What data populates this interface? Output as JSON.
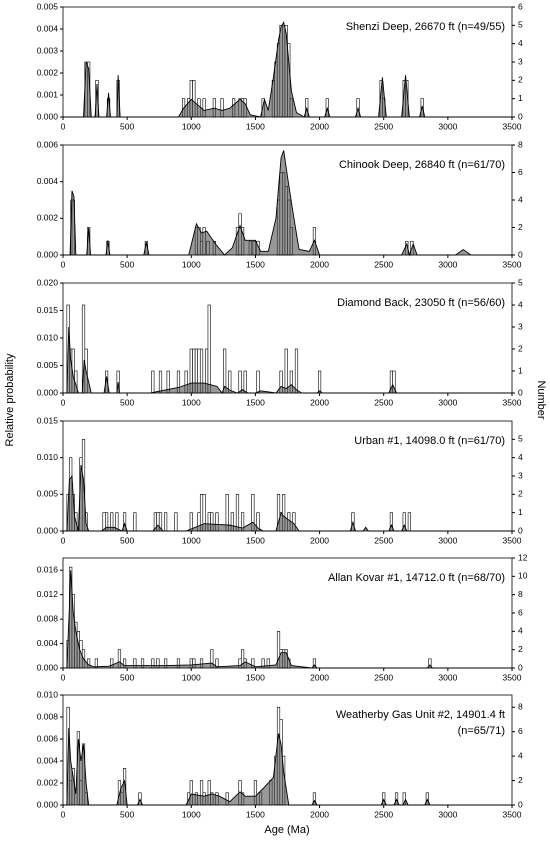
{
  "labels": {
    "y_label": "Relative probability",
    "y2_label": "Number",
    "x_label": "Age (Ma)"
  },
  "chart_data": [
    {
      "type": "histogram-probability",
      "title_lines": [
        "Shenzi Deep, 26670 ft (n=49/55)"
      ],
      "xlim": [
        0,
        3500
      ],
      "xticks": [
        0,
        500,
        1000,
        1500,
        2000,
        2500,
        3000,
        3500
      ],
      "ylim": [
        0,
        0.005
      ],
      "yticks": [
        {
          "value": 0,
          "label": "0.000"
        },
        0.001,
        0.002,
        0.003,
        0.004,
        0.005
      ],
      "y2lim": [
        0,
        6
      ],
      "y2ticks": [
        0,
        1,
        2,
        3,
        4,
        5,
        6
      ],
      "bars": {
        "x": [
          180,
          200,
          265,
          355,
          430,
          940,
          980,
          1000,
          1020,
          1060,
          1100,
          1180,
          1240,
          1330,
          1380,
          1400,
          1420,
          1560,
          1640,
          1660,
          1680,
          1700,
          1720,
          1740,
          1760,
          1780,
          1900,
          2060,
          2300,
          2480,
          2500,
          2660,
          2680,
          2800
        ],
        "values": [
          3,
          3,
          2,
          1,
          2,
          1,
          1,
          2,
          2,
          1,
          1,
          1,
          1,
          1,
          1,
          1,
          1,
          1,
          2,
          3,
          4,
          5,
          5,
          5,
          4,
          1,
          1,
          1,
          1,
          2,
          1,
          2,
          2,
          1
        ]
      },
      "curve": {
        "x": [
          0,
          160,
          180,
          200,
          220,
          250,
          265,
          280,
          340,
          355,
          370,
          420,
          430,
          445,
          900,
          940,
          1000,
          1040,
          1100,
          1180,
          1240,
          1300,
          1380,
          1420,
          1460,
          1540,
          1570,
          1600,
          1640,
          1680,
          1700,
          1720,
          1740,
          1780,
          1820,
          1880,
          1900,
          1920,
          2040,
          2060,
          2080,
          2280,
          2300,
          2320,
          2460,
          2490,
          2520,
          2640,
          2670,
          2700,
          2780,
          2800,
          2820,
          3500
        ],
        "values": [
          0,
          0,
          0.0025,
          0.0022,
          0,
          0,
          0.0015,
          0,
          0,
          0.0011,
          0,
          0,
          0.0019,
          0,
          0,
          0.0004,
          0.0008,
          0.0006,
          0.0003,
          0.0004,
          0.0003,
          0.0004,
          0.0008,
          0.0006,
          0.0001,
          0,
          0.0008,
          0.0003,
          0.0018,
          0.0035,
          0.0041,
          0.0043,
          0.0038,
          0.0012,
          0.0002,
          0,
          0.0004,
          0,
          0,
          0.0004,
          0,
          0,
          0.0004,
          0,
          0,
          0.0018,
          0,
          0,
          0.0019,
          0,
          0,
          0.0005,
          0,
          0
        ]
      }
    },
    {
      "type": "histogram-probability",
      "title_lines": [
        "Chinook Deep, 26840 ft (n=61/70)"
      ],
      "xlim": [
        0,
        3500
      ],
      "xticks": [
        0,
        500,
        1000,
        1500,
        2000,
        2500,
        3000,
        3500
      ],
      "ylim": [
        0,
        0.006
      ],
      "yticks": [
        {
          "value": 0,
          "label": "0.000"
        },
        0.002,
        0.004,
        0.006
      ],
      "y2lim": [
        0,
        8
      ],
      "y2ticks": [
        0,
        2,
        4,
        6,
        8
      ],
      "bars": {
        "x": [
          70,
          80,
          200,
          350,
          650,
          1040,
          1060,
          1080,
          1100,
          1130,
          1180,
          1360,
          1380,
          1400,
          1460,
          1490,
          1520,
          1680,
          1700,
          1720,
          1740,
          1760,
          1780,
          1960,
          2680,
          2720
        ],
        "values": [
          4,
          4,
          2,
          1,
          1,
          2,
          2,
          1,
          2,
          1,
          1,
          2,
          3,
          2,
          1,
          1,
          1,
          4,
          6,
          6,
          5,
          4,
          2,
          2,
          1,
          1
        ]
      },
      "curve": {
        "x": [
          0,
          55,
          70,
          85,
          100,
          185,
          200,
          215,
          335,
          350,
          365,
          630,
          650,
          670,
          980,
          1040,
          1080,
          1120,
          1200,
          1260,
          1320,
          1380,
          1420,
          1450,
          1500,
          1540,
          1600,
          1660,
          1700,
          1720,
          1760,
          1800,
          1840,
          1920,
          1960,
          2000,
          2640,
          2680,
          2700,
          2730,
          2760,
          3060,
          3120,
          3180,
          3500
        ],
        "values": [
          0,
          0,
          0.0035,
          0.0032,
          0,
          0,
          0.0015,
          0,
          0,
          0.0008,
          0,
          0,
          0.0007,
          0,
          0,
          0.0017,
          0.0012,
          0.0013,
          0.0005,
          0,
          0.0004,
          0.0016,
          0.0008,
          0.0008,
          0.0008,
          0.0002,
          0.0002,
          0.002,
          0.0053,
          0.0057,
          0.0038,
          0.002,
          0.0003,
          0.0002,
          0.0008,
          0,
          0,
          0.0006,
          0,
          0.0006,
          0,
          0,
          0.0003,
          0,
          0
        ]
      }
    },
    {
      "type": "histogram-probability",
      "title_lines": [
        "Diamond Back, 23050 ft (n=56/60)"
      ],
      "xlim": [
        0,
        3500
      ],
      "xticks": [
        0,
        500,
        1000,
        1500,
        2000,
        2500,
        3000,
        3500
      ],
      "ylim": [
        0,
        0.02
      ],
      "yticks": [
        {
          "value": 0,
          "label": "0.000"
        },
        0.005,
        {
          "value": 0.01,
          "label": "0.010"
        },
        0.015,
        {
          "value": 0.02,
          "label": "0.020"
        }
      ],
      "y2lim": [
        0,
        5
      ],
      "y2ticks": [
        0,
        1,
        2,
        3,
        4,
        5
      ],
      "bars": {
        "x": [
          40,
          60,
          80,
          100,
          160,
          180,
          340,
          430,
          700,
          760,
          820,
          900,
          960,
          1000,
          1020,
          1040,
          1060,
          1080,
          1120,
          1140,
          1260,
          1300,
          1380,
          1420,
          1520,
          1700,
          1740,
          1780,
          1820,
          2000,
          2560,
          2580
        ],
        "values": [
          4,
          2,
          2,
          1,
          4,
          2,
          1,
          1,
          1,
          1,
          1,
          1,
          1,
          2,
          2,
          2,
          2,
          2,
          2,
          4,
          2,
          1,
          1,
          1,
          1,
          1,
          2,
          1,
          2,
          1,
          1,
          1
        ]
      },
      "curve": {
        "x": [
          0,
          30,
          45,
          60,
          80,
          120,
          150,
          165,
          180,
          220,
          320,
          340,
          360,
          420,
          430,
          440,
          680,
          900,
          1000,
          1100,
          1200,
          1240,
          1260,
          1300,
          1360,
          1400,
          1440,
          1500,
          1540,
          1660,
          1700,
          1740,
          1780,
          1820,
          1860,
          1980,
          2000,
          2020,
          2540,
          2570,
          2600,
          3500
        ],
        "values": [
          0,
          0,
          0.012,
          0.006,
          0.003,
          0,
          0,
          0.006,
          0.004,
          0,
          0,
          0.003,
          0,
          0,
          0.002,
          0,
          0,
          0.001,
          0.0018,
          0.0018,
          0.0012,
          0,
          0.0012,
          0.0005,
          0,
          0.0006,
          0,
          0,
          0.0004,
          0,
          0.0012,
          0.0008,
          0.0015,
          0.0006,
          0,
          0,
          0.0004,
          0,
          0,
          0.0015,
          0,
          0
        ]
      }
    },
    {
      "type": "histogram-probability",
      "title_lines": [
        "Urban #1, 14098.0 ft (n=61/70)"
      ],
      "xlim": [
        0,
        3500
      ],
      "xticks": [
        0,
        500,
        1000,
        1500,
        2000,
        2500,
        3000,
        3500
      ],
      "ylim": [
        0,
        0.015
      ],
      "yticks": [
        {
          "value": 0,
          "label": "0.000"
        },
        0.005,
        {
          "value": 0.01,
          "label": "0.010"
        },
        0.015
      ],
      "y2lim": [
        0,
        6
      ],
      "y2ticks": [
        0,
        1,
        2,
        3,
        4,
        5
      ],
      "bars": {
        "x": [
          40,
          60,
          80,
          100,
          140,
          160,
          180,
          320,
          340,
          380,
          420,
          480,
          560,
          720,
          740,
          760,
          800,
          880,
          1000,
          1060,
          1080,
          1100,
          1140,
          1160,
          1200,
          1280,
          1320,
          1360,
          1400,
          1480,
          1520,
          1680,
          1700,
          1720,
          1760,
          1800,
          2260,
          2560,
          2660,
          2700
        ],
        "values": [
          2,
          4,
          2,
          1,
          4,
          5,
          1,
          1,
          1,
          1,
          1,
          1,
          1,
          1,
          1,
          1,
          1,
          1,
          1,
          1,
          2,
          2,
          1,
          1,
          1,
          2,
          1,
          2,
          1,
          2,
          1,
          2,
          1,
          2,
          1,
          1,
          1,
          1,
          1,
          1
        ]
      },
      "curve": {
        "x": [
          0,
          30,
          50,
          70,
          90,
          120,
          140,
          160,
          180,
          200,
          300,
          340,
          400,
          460,
          480,
          500,
          700,
          740,
          780,
          960,
          1100,
          1300,
          1400,
          1480,
          1520,
          1560,
          1660,
          1700,
          1720,
          1760,
          1800,
          1840,
          2240,
          2260,
          2280,
          2340,
          2360,
          2380,
          2540,
          2560,
          2580,
          2640,
          2660,
          2680,
          3500
        ],
        "values": [
          0,
          0,
          0.007,
          0.0075,
          0.002,
          0,
          0.009,
          0.007,
          0.001,
          0,
          0,
          0.0005,
          0.0005,
          0,
          0.001,
          0,
          0,
          0.0008,
          0,
          0,
          0.001,
          0.0008,
          0.0004,
          0.0012,
          0.0004,
          0,
          0,
          0.0025,
          0.002,
          0.0015,
          0.001,
          0,
          0,
          0.0012,
          0,
          0,
          0.0005,
          0,
          0,
          0.0008,
          0,
          0,
          0.0008,
          0,
          0
        ]
      }
    },
    {
      "type": "histogram-probability",
      "title_lines": [
        "Allan Kovar #1, 14712.0 ft (n=68/70)"
      ],
      "xlim": [
        0,
        3500
      ],
      "xticks": [
        0,
        500,
        1000,
        1500,
        2000,
        2500,
        3000,
        3500
      ],
      "ylim": [
        0,
        0.018
      ],
      "yticks": [
        {
          "value": 0,
          "label": "0.000"
        },
        0.004,
        0.008,
        0.012,
        0.016
      ],
      "y2lim": [
        0,
        12
      ],
      "y2ticks": [
        0,
        2,
        4,
        6,
        8,
        10,
        12
      ],
      "bars": {
        "x": [
          40,
          60,
          80,
          100,
          120,
          140,
          160,
          200,
          260,
          380,
          440,
          480,
          560,
          620,
          700,
          740,
          800,
          900,
          1000,
          1020,
          1080,
          1160,
          1200,
          1380,
          1400,
          1420,
          1480,
          1560,
          1600,
          1680,
          1700,
          1720,
          1740,
          1760,
          1960,
          2860
        ],
        "values": [
          3,
          11,
          8,
          5,
          4,
          3,
          2,
          1,
          1,
          1,
          2,
          1,
          1,
          1,
          1,
          1,
          1,
          1,
          1,
          1,
          1,
          2,
          1,
          1,
          2,
          1,
          1,
          1,
          1,
          4,
          2,
          2,
          2,
          1,
          1,
          1
        ]
      },
      "curve": {
        "x": [
          0,
          30,
          50,
          60,
          80,
          100,
          130,
          160,
          200,
          240,
          360,
          440,
          480,
          600,
          800,
          1000,
          1160,
          1200,
          1380,
          1420,
          1500,
          1660,
          1700,
          1740,
          1780,
          1940,
          1960,
          1980,
          2840,
          2860,
          2880,
          3500
        ],
        "values": [
          0,
          0,
          0.01,
          0.016,
          0.009,
          0.006,
          0.003,
          0.0015,
          0.0005,
          0.0002,
          0.0003,
          0.001,
          0.0004,
          0.0004,
          0.0004,
          0.0005,
          0.0008,
          0.0002,
          0.0004,
          0.001,
          0.0002,
          0.0005,
          0.0025,
          0.0025,
          0.0004,
          0,
          0.0005,
          0,
          0,
          0.0005,
          0,
          0
        ]
      }
    },
    {
      "type": "histogram-probability",
      "title_lines": [
        "Weatherby Gas Unit #2, 14901.4 ft",
        "(n=65/71)"
      ],
      "xlim": [
        0,
        3500
      ],
      "xticks": [
        0,
        500,
        1000,
        1500,
        2000,
        2500,
        3000,
        3500
      ],
      "ylim": [
        0,
        0.01
      ],
      "yticks": [
        {
          "value": 0,
          "label": "0.000"
        },
        0.002,
        0.004,
        0.006,
        0.008,
        {
          "value": 0.01,
          "label": "0.010"
        }
      ],
      "y2lim": [
        0,
        9
      ],
      "y2ticks": [
        0,
        2,
        4,
        6,
        8
      ],
      "bars": {
        "x": [
          40,
          60,
          80,
          120,
          140,
          160,
          180,
          440,
          460,
          480,
          600,
          980,
          1000,
          1040,
          1080,
          1100,
          1140,
          1160,
          1200,
          1280,
          1380,
          1400,
          1500,
          1540,
          1620,
          1660,
          1680,
          1700,
          1720,
          1960,
          2500,
          2600,
          2660,
          2840
        ],
        "values": [
          8,
          2,
          3,
          6,
          2,
          5,
          1,
          2,
          1,
          3,
          1,
          1,
          2,
          1,
          2,
          1,
          2,
          1,
          1,
          1,
          2,
          1,
          2,
          1,
          2,
          4,
          8,
          7,
          4,
          1,
          1,
          1,
          1,
          1
        ]
      },
      "curve": {
        "x": [
          0,
          30,
          45,
          60,
          80,
          100,
          120,
          140,
          160,
          180,
          200,
          420,
          450,
          480,
          500,
          580,
          600,
          620,
          960,
          1000,
          1100,
          1160,
          1220,
          1300,
          1380,
          1420,
          1500,
          1560,
          1640,
          1680,
          1700,
          1720,
          1760,
          1940,
          1960,
          1980,
          2480,
          2500,
          2520,
          2580,
          2600,
          2620,
          2650,
          2670,
          2690,
          2820,
          2840,
          2860,
          3500
        ],
        "values": [
          0,
          0,
          0.007,
          0.004,
          0.0025,
          0.001,
          0.006,
          0.004,
          0.0055,
          0.002,
          0,
          0,
          0.0015,
          0.0022,
          0,
          0,
          0.0005,
          0,
          0,
          0.001,
          0.0008,
          0.001,
          0.0008,
          0.0003,
          0.0012,
          0.0008,
          0.0008,
          0.0015,
          0.0025,
          0.0065,
          0.0055,
          0.003,
          0,
          0,
          0.0004,
          0,
          0,
          0.0005,
          0,
          0,
          0.0005,
          0,
          0,
          0.0005,
          0,
          0,
          0.0005,
          0,
          0
        ]
      }
    }
  ]
}
